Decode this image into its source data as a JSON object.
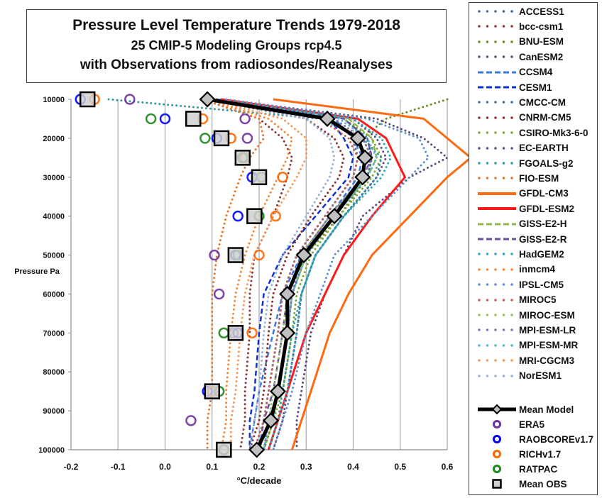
{
  "chart_data": {
    "type": "line",
    "title": "Pressure Level Temperature Trends 1979-2018",
    "subtitle_1": "25 CMIP-5 Modeling Groups rcp4.5",
    "subtitle_2": "with Observations from radiosondes/Reanalyses",
    "xlabel": "°C/decade",
    "ylabel": "Pressure Pa",
    "xlim": [
      -0.2,
      0.6
    ],
    "ylim": [
      10000,
      100000
    ],
    "y_inverted": true,
    "grid": "vertical",
    "legend_position": "right",
    "x_ticks": [
      "-0.2",
      "-0.1",
      "0.0",
      "0.1",
      "0.2",
      "0.3",
      "0.4",
      "0.5",
      "0.6"
    ],
    "y_ticks": [
      "10000",
      "20000",
      "30000",
      "40000",
      "50000",
      "60000",
      "70000",
      "80000",
      "90000",
      "100000"
    ],
    "pressure_levels": [
      10000,
      15000,
      20000,
      25000,
      30000,
      40000,
      50000,
      60000,
      70000,
      85000,
      92500,
      100000
    ],
    "models": [
      {
        "name": "ACCESS1",
        "color": "#3d6a9a",
        "style": "dotted",
        "values": [
          0.1,
          0.36,
          0.4,
          0.41,
          0.4,
          0.34,
          0.28,
          0.25,
          0.24,
          0.22,
          0.21,
          0.19
        ]
      },
      {
        "name": "bcc-csm1",
        "color": "#8b3a3a",
        "style": "dotted",
        "values": [
          0.08,
          0.2,
          0.25,
          0.27,
          0.26,
          0.23,
          0.19,
          0.18,
          0.18,
          0.17,
          0.17,
          0.16
        ]
      },
      {
        "name": "BNU-ESM",
        "color": "#6b8e23",
        "style": "dotted",
        "values": [
          0.6,
          0.47,
          0.42,
          0.44,
          0.43,
          0.37,
          0.3,
          0.27,
          0.26,
          0.24,
          0.23,
          0.21
        ]
      },
      {
        "name": "CanESM2",
        "color": "#5a4a7a",
        "style": "dotted",
        "values": [
          0.12,
          0.45,
          0.55,
          0.6,
          0.52,
          0.42,
          0.38,
          0.34,
          0.31,
          0.29,
          0.28,
          0.28
        ]
      },
      {
        "name": "CCSM4",
        "color": "#3a78e0",
        "style": "dashed",
        "values": [
          0.12,
          0.36,
          0.4,
          0.42,
          0.41,
          0.35,
          0.29,
          0.25,
          0.23,
          0.2,
          0.19,
          0.18
        ]
      },
      {
        "name": "CESM1",
        "color": "#1030d0",
        "style": "dashed",
        "values": [
          0.12,
          0.35,
          0.38,
          0.4,
          0.39,
          0.32,
          0.25,
          0.21,
          0.2,
          0.19,
          0.18,
          0.18
        ]
      },
      {
        "name": "CMCC-CM",
        "color": "#3e6f9e",
        "style": "dotted",
        "values": [
          0.1,
          0.38,
          0.43,
          0.44,
          0.43,
          0.36,
          0.3,
          0.27,
          0.26,
          0.24,
          0.22,
          0.2
        ]
      },
      {
        "name": "CNRM-CM5",
        "color": "#8a3030",
        "style": "dotted",
        "values": [
          0.09,
          0.3,
          0.36,
          0.38,
          0.37,
          0.31,
          0.26,
          0.23,
          0.22,
          0.21,
          0.2,
          0.18
        ]
      },
      {
        "name": "CSIRO-Mk3-6-0",
        "color": "#7fa83a",
        "style": "dotted",
        "values": [
          0.1,
          0.38,
          0.44,
          0.46,
          0.44,
          0.37,
          0.31,
          0.28,
          0.27,
          0.25,
          0.23,
          0.21
        ]
      },
      {
        "name": "EC-EARTH",
        "color": "#5e4b85",
        "style": "dotted",
        "values": [
          0.11,
          0.4,
          0.45,
          0.47,
          0.45,
          0.38,
          0.32,
          0.29,
          0.28,
          0.26,
          0.25,
          0.23
        ]
      },
      {
        "name": "FGOALS-g2",
        "color": "#2f9aa8",
        "style": "dotted",
        "values": [
          -0.12,
          0.33,
          0.42,
          0.46,
          0.45,
          0.38,
          0.32,
          0.29,
          0.27,
          0.25,
          0.24,
          0.22
        ]
      },
      {
        "name": "FIO-ESM",
        "color": "#e07a30",
        "style": "dotted",
        "values": [
          0.08,
          0.2,
          0.21,
          0.18,
          0.16,
          0.13,
          0.11,
          0.1,
          0.1,
          0.1,
          0.09,
          0.09
        ]
      },
      {
        "name": "GFDL-CM3",
        "color": "#ff6a10",
        "style": "solid",
        "values": [
          0.23,
          0.55,
          0.6,
          0.65,
          0.6,
          0.52,
          0.44,
          0.39,
          0.35,
          0.31,
          0.29,
          0.27
        ]
      },
      {
        "name": "GFDL-ESM2",
        "color": "#ff1a1a",
        "style": "solid",
        "values": [
          0.12,
          0.41,
          0.47,
          0.49,
          0.51,
          0.44,
          0.38,
          0.34,
          0.3,
          0.26,
          0.24,
          0.22
        ]
      },
      {
        "name": "GISS-E2-H",
        "color": "#8fb848",
        "style": "dashed",
        "values": [
          0.11,
          0.39,
          0.44,
          0.45,
          0.43,
          0.36,
          0.3,
          0.27,
          0.26,
          0.24,
          0.22,
          0.2
        ]
      },
      {
        "name": "GISS-E2-R",
        "color": "#6a4e9a",
        "style": "dashed",
        "values": [
          0.11,
          0.38,
          0.43,
          0.44,
          0.42,
          0.35,
          0.29,
          0.26,
          0.25,
          0.23,
          0.21,
          0.2
        ]
      },
      {
        "name": "HadGEM2",
        "color": "#2ea8c0",
        "style": "dotted",
        "values": [
          0.1,
          0.4,
          0.46,
          0.48,
          0.46,
          0.38,
          0.32,
          0.29,
          0.28,
          0.26,
          0.24,
          0.22
        ]
      },
      {
        "name": "inmcm4",
        "color": "#f08a3a",
        "style": "dotted",
        "values": [
          0.09,
          0.22,
          0.27,
          0.26,
          0.24,
          0.2,
          0.17,
          0.15,
          0.14,
          0.13,
          0.13,
          0.12
        ]
      },
      {
        "name": "IPSL-CM5",
        "color": "#5b8fd0",
        "style": "dotted",
        "values": [
          0.13,
          0.43,
          0.54,
          0.56,
          0.52,
          0.44,
          0.36,
          0.33,
          0.3,
          0.27,
          0.25,
          0.23
        ]
      },
      {
        "name": "MIROC5",
        "color": "#c86060",
        "style": "dotted",
        "values": [
          0.09,
          0.33,
          0.39,
          0.41,
          0.4,
          0.34,
          0.28,
          0.25,
          0.24,
          0.22,
          0.21,
          0.19
        ]
      },
      {
        "name": "MIROC-ESM",
        "color": "#98c060",
        "style": "dotted",
        "values": [
          0.1,
          0.35,
          0.41,
          0.43,
          0.42,
          0.35,
          0.29,
          0.26,
          0.25,
          0.23,
          0.22,
          0.2
        ]
      },
      {
        "name": "MPI-ESM-LR",
        "color": "#8a70b8",
        "style": "dotted",
        "values": [
          0.1,
          0.36,
          0.42,
          0.44,
          0.42,
          0.35,
          0.29,
          0.27,
          0.26,
          0.24,
          0.22,
          0.21
        ]
      },
      {
        "name": "MPI-ESM-MR",
        "color": "#50b8d0",
        "style": "dotted",
        "values": [
          0.1,
          0.37,
          0.43,
          0.45,
          0.43,
          0.36,
          0.3,
          0.27,
          0.26,
          0.24,
          0.22,
          0.21
        ]
      },
      {
        "name": "MRI-CGCM3",
        "color": "#f49a60",
        "style": "dotted",
        "values": [
          0.09,
          0.25,
          0.3,
          0.3,
          0.28,
          0.23,
          0.19,
          0.17,
          0.16,
          0.15,
          0.14,
          0.14
        ]
      },
      {
        "name": "NorESM1",
        "color": "#9ab0d8",
        "style": "dotted",
        "values": [
          0.1,
          0.3,
          0.35,
          0.36,
          0.35,
          0.3,
          0.25,
          0.22,
          0.21,
          0.2,
          0.19,
          0.18
        ]
      }
    ],
    "mean_model": {
      "name": "Mean Model",
      "color": "#000000",
      "marker_fill": "#c0c0c0",
      "values": [
        0.09,
        0.345,
        0.41,
        0.425,
        0.42,
        0.36,
        0.295,
        0.26,
        0.26,
        0.24,
        0.225,
        0.195
      ]
    },
    "observations": [
      {
        "name": "ERA5",
        "color": "#7030a0",
        "points": [
          [
            10000,
            -0.075
          ],
          [
            15000,
            0.17
          ],
          [
            20000,
            0.175
          ],
          [
            25000,
            0.165
          ],
          [
            50000,
            0.105
          ],
          [
            60000,
            0.115
          ],
          [
            70000,
            0.145
          ],
          [
            92500,
            0.055
          ],
          [
            100000,
            0.125
          ]
        ]
      },
      {
        "name": "RAOBCOREv1.7",
        "color": "#0000ff",
        "points": [
          [
            10000,
            -0.18
          ],
          [
            15000,
            0.0
          ],
          [
            20000,
            0.11
          ],
          [
            25000,
            0.165
          ],
          [
            30000,
            0.185
          ],
          [
            40000,
            0.155
          ],
          [
            50000,
            0.15
          ],
          [
            70000,
            0.155
          ],
          [
            85000,
            0.09
          ],
          [
            100000,
            0.125
          ]
        ]
      },
      {
        "name": "RICHv1.7",
        "color": "#ff6600",
        "points": [
          [
            10000,
            -0.15
          ],
          [
            15000,
            0.08
          ],
          [
            20000,
            0.14
          ],
          [
            25000,
            0.17
          ],
          [
            30000,
            0.25
          ],
          [
            40000,
            0.235
          ],
          [
            50000,
            0.2
          ],
          [
            70000,
            0.185
          ],
          [
            85000,
            0.1
          ],
          [
            100000,
            0.125
          ]
        ]
      },
      {
        "name": "RATPAC",
        "color": "#1a8a1a",
        "points": [
          [
            15000,
            -0.03
          ],
          [
            20000,
            0.085
          ],
          [
            25000,
            0.165
          ],
          [
            30000,
            0.205
          ],
          [
            40000,
            0.2
          ],
          [
            50000,
            0.155
          ],
          [
            70000,
            0.125
          ],
          [
            85000,
            0.115
          ],
          [
            100000,
            0.125
          ]
        ]
      }
    ],
    "mean_obs": {
      "name": "Mean OBS",
      "color": "#000000",
      "marker_fill": "#d0d0d0",
      "points": [
        [
          10000,
          -0.165
        ],
        [
          15000,
          0.06
        ],
        [
          20000,
          0.12
        ],
        [
          25000,
          0.165
        ],
        [
          30000,
          0.2
        ],
        [
          40000,
          0.19
        ],
        [
          50000,
          0.15
        ],
        [
          70000,
          0.15
        ],
        [
          85000,
          0.1
        ],
        [
          100000,
          0.125
        ]
      ]
    }
  }
}
